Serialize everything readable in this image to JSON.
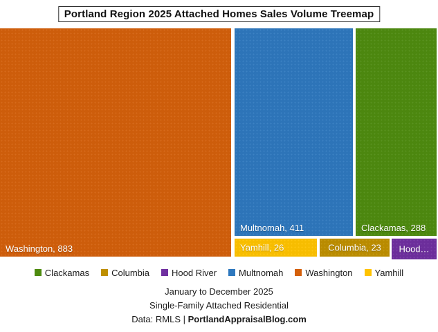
{
  "title": "Portland Region 2025 Attached Homes Sales Volume Treemap",
  "chart_data": {
    "type": "treemap",
    "title": "Portland Region 2025 Attached Homes Sales Volume Treemap",
    "legend_position": "bottom",
    "series": [
      {
        "name": "Washington",
        "value": 883,
        "label": "Washington, 883",
        "color": "#D4600B"
      },
      {
        "name": "Multnomah",
        "value": 411,
        "label": "Multnomah, 411",
        "color": "#2E78BE"
      },
      {
        "name": "Clackamas",
        "value": 288,
        "label": "Clackamas, 288",
        "color": "#4E8B10"
      },
      {
        "name": "Yamhill",
        "value": 26,
        "label": "Yamhill, 26",
        "color": "#FFC300"
      },
      {
        "name": "Columbia",
        "value": 23,
        "label": "Columbia, 23",
        "color": "#BF9000"
      },
      {
        "name": "Hood River",
        "value": null,
        "label": "Hood…",
        "color": "#7030A0"
      }
    ]
  },
  "legend": {
    "items": [
      {
        "label": "Clackamas",
        "color": "#4E8B10"
      },
      {
        "label": "Columbia",
        "color": "#BF9000"
      },
      {
        "label": "Hood River",
        "color": "#7030A0"
      },
      {
        "label": "Multnomah",
        "color": "#2E78BE"
      },
      {
        "label": "Washington",
        "color": "#D4600B"
      },
      {
        "label": "Yamhill",
        "color": "#FFC300"
      }
    ]
  },
  "footer": {
    "line1": "January to December 2025",
    "line2": "Single-Family Attached Residential",
    "line3_prefix": "Data: RMLS | ",
    "line3_bold": "PortlandAppraisalBlog.com"
  }
}
